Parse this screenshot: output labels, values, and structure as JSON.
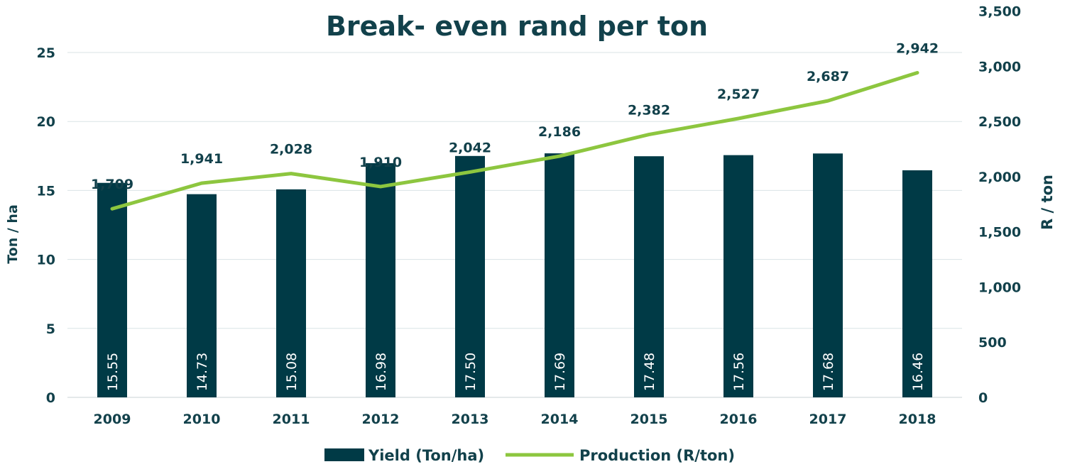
{
  "chart_data": {
    "type": "bar",
    "title": "Break- even rand per ton",
    "categories": [
      "2009",
      "2010",
      "2011",
      "2012",
      "2013",
      "2014",
      "2015",
      "2016",
      "2017",
      "2018"
    ],
    "series": [
      {
        "name": "Yield (Ton/ha)",
        "type": "bar",
        "axis": "left",
        "values": [
          15.55,
          14.73,
          15.08,
          16.98,
          17.5,
          17.69,
          17.48,
          17.56,
          17.68,
          16.46
        ],
        "labels": [
          "15.55",
          "14.73",
          "15.08",
          "16.98",
          "17.50",
          "17.69",
          "17.48",
          "17.56",
          "17.68",
          "16.46"
        ],
        "color": "#003a46"
      },
      {
        "name": "Production (R/ton)",
        "type": "line",
        "axis": "right",
        "values": [
          1709,
          1941,
          2028,
          1910,
          2042,
          2186,
          2382,
          2527,
          2687,
          2942
        ],
        "labels": [
          "1,709",
          "1,941",
          "2,028",
          "1,910",
          "2,042",
          "2,186",
          "2,382",
          "2,527",
          "2,687",
          "2,942"
        ],
        "color": "#8dc63f"
      }
    ],
    "ylabel": "Ton / ha",
    "ylabel_right": "R / ton",
    "ylim": [
      0,
      25
    ],
    "yticks": [
      "0",
      "5",
      "10",
      "15",
      "20",
      "25"
    ],
    "ylim_right": [
      0,
      3500
    ],
    "yticks_right": [
      "0",
      "500",
      "1,000",
      "1,500",
      "2,000",
      "2,500",
      "3,000",
      "3,500"
    ],
    "grid": true,
    "legend_position": "bottom",
    "text_color": "#12414b",
    "grid_color": "#d9e3e6"
  }
}
